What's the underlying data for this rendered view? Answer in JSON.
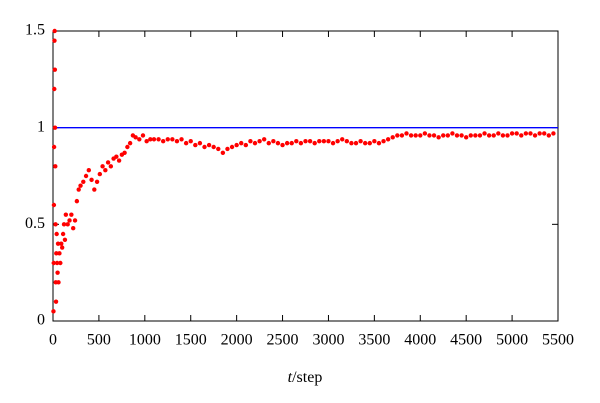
{
  "chart_data": {
    "type": "scatter",
    "xlabel": [
      "t",
      "/step"
    ],
    "xlim": [
      0,
      5500
    ],
    "xticks": [
      0,
      500,
      1000,
      1500,
      2000,
      2500,
      3000,
      3500,
      4000,
      4500,
      5000,
      5500
    ],
    "ylim": [
      0,
      1.5
    ],
    "yticks": [
      0,
      0.5,
      1,
      1.5
    ],
    "series": [
      {
        "style": "line",
        "color": "#0000ff",
        "x": [
          0,
          5500
        ],
        "values": [
          1,
          1
        ]
      },
      {
        "style": "markers",
        "color": "#ff0000",
        "x": [
          5,
          8,
          10,
          12,
          14,
          16,
          18,
          20,
          22,
          25,
          28,
          30,
          33,
          36,
          40,
          45,
          50,
          55,
          60,
          70,
          80,
          90,
          100,
          110,
          120,
          130,
          140,
          160,
          180,
          200,
          220,
          240,
          260,
          280,
          300,
          330,
          360,
          390,
          420,
          450,
          480,
          510,
          540,
          570,
          600,
          630,
          660,
          690,
          720,
          750,
          780,
          810,
          840,
          870,
          900,
          940,
          980,
          1020,
          1060,
          1100,
          1150,
          1200,
          1250,
          1300,
          1350,
          1400,
          1450,
          1500,
          1550,
          1600,
          1650,
          1700,
          1750,
          1800,
          1850,
          1900,
          1950,
          2000,
          2050,
          2100,
          2150,
          2200,
          2250,
          2300,
          2350,
          2400,
          2450,
          2500,
          2550,
          2600,
          2650,
          2700,
          2750,
          2800,
          2850,
          2900,
          2950,
          3000,
          3050,
          3100,
          3150,
          3200,
          3250,
          3300,
          3350,
          3400,
          3450,
          3500,
          3550,
          3600,
          3650,
          3700,
          3750,
          3800,
          3850,
          3900,
          3950,
          4000,
          4050,
          4100,
          4150,
          4200,
          4250,
          4300,
          4350,
          4400,
          4450,
          4500,
          4550,
          4600,
          4650,
          4700,
          4750,
          4800,
          4850,
          4900,
          4950,
          5000,
          5050,
          5100,
          5150,
          5200,
          5250,
          5300,
          5350,
          5400,
          5450
        ],
        "values": [
          0.05,
          0.3,
          0.6,
          0.9,
          1.2,
          1.45,
          1.5,
          1.3,
          1.0,
          0.8,
          0.5,
          0.2,
          0.1,
          0.35,
          0.45,
          0.3,
          0.25,
          0.4,
          0.2,
          0.35,
          0.3,
          0.4,
          0.38,
          0.45,
          0.5,
          0.42,
          0.55,
          0.5,
          0.52,
          0.55,
          0.48,
          0.52,
          0.62,
          0.68,
          0.7,
          0.72,
          0.75,
          0.78,
          0.73,
          0.68,
          0.72,
          0.76,
          0.8,
          0.78,
          0.82,
          0.8,
          0.84,
          0.85,
          0.83,
          0.86,
          0.87,
          0.9,
          0.92,
          0.96,
          0.95,
          0.94,
          0.96,
          0.93,
          0.94,
          0.94,
          0.94,
          0.93,
          0.94,
          0.94,
          0.93,
          0.94,
          0.92,
          0.93,
          0.91,
          0.92,
          0.9,
          0.91,
          0.9,
          0.89,
          0.87,
          0.89,
          0.9,
          0.91,
          0.92,
          0.91,
          0.93,
          0.92,
          0.93,
          0.94,
          0.92,
          0.93,
          0.92,
          0.91,
          0.92,
          0.92,
          0.93,
          0.92,
          0.93,
          0.93,
          0.92,
          0.93,
          0.93,
          0.93,
          0.92,
          0.93,
          0.94,
          0.93,
          0.92,
          0.92,
          0.93,
          0.92,
          0.92,
          0.93,
          0.92,
          0.93,
          0.94,
          0.95,
          0.96,
          0.96,
          0.97,
          0.96,
          0.96,
          0.96,
          0.97,
          0.96,
          0.96,
          0.95,
          0.96,
          0.96,
          0.97,
          0.96,
          0.96,
          0.95,
          0.96,
          0.96,
          0.96,
          0.97,
          0.96,
          0.96,
          0.97,
          0.96,
          0.96,
          0.97,
          0.97,
          0.96,
          0.97,
          0.97,
          0.96,
          0.97,
          0.97,
          0.96,
          0.97
        ]
      }
    ]
  }
}
